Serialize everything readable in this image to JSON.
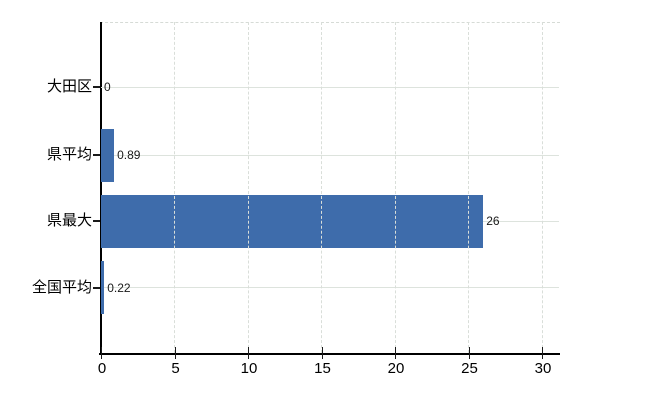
{
  "chart_data": {
    "type": "bar",
    "orientation": "horizontal",
    "title": "",
    "xlabel": "",
    "ylabel": "",
    "categories": [
      "大田区",
      "県平均",
      "県最大",
      "全国平均"
    ],
    "values": [
      0,
      0.89,
      26,
      0.22
    ],
    "value_labels": [
      "0",
      "0.89",
      "26",
      "0.22"
    ],
    "x_ticks": [
      0,
      5,
      10,
      15,
      20,
      25,
      30
    ],
    "x_tick_labels": [
      "0",
      "5",
      "10",
      "15",
      "20",
      "25",
      "30"
    ],
    "xlim": [
      0,
      31.2
    ],
    "grid": true,
    "legend": "none",
    "bar_color": "#3e6cab"
  },
  "colors": {
    "bar": "#3e6cab",
    "axis": "#000000",
    "grid_horizontal": "#dde3dd",
    "grid_vertical": "#d9ded9",
    "text": "#000000",
    "value_text": "#1a1a1a",
    "background": "#ffffff"
  }
}
